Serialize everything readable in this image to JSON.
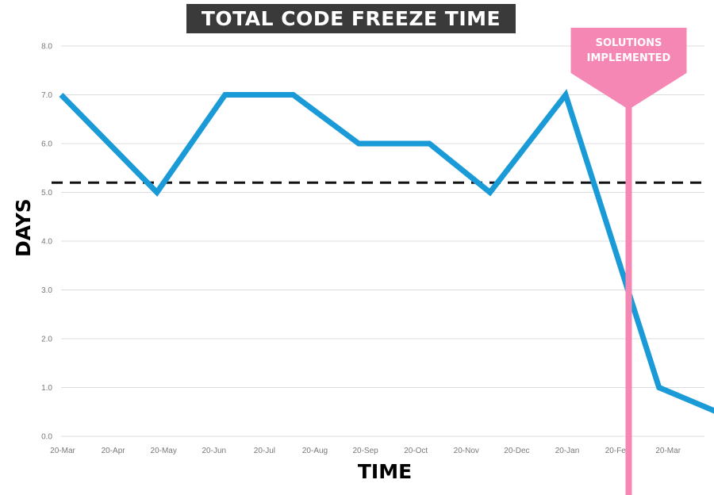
{
  "chart_data": {
    "type": "line",
    "title": "TOTAL CODE FREEZE TIME",
    "xlabel": "TIME",
    "ylabel": "DAYS",
    "ylim": [
      0,
      8
    ],
    "yticks": [
      "0.0",
      "1.0",
      "2.0",
      "3.0",
      "4.0",
      "5.0",
      "6.0",
      "7.0",
      "8.0"
    ],
    "xticks": [
      "20-Mar",
      "20-Apr",
      "20-May",
      "20-Jun",
      "20-Jul",
      "20-Aug",
      "20-Sep",
      "20-Oct",
      "20-Nov",
      "20-Dec",
      "20-Jan",
      "20-Feb",
      "20-Mar"
    ],
    "grid": true,
    "series": [
      {
        "values": [
          7.0,
          5.0,
          7.0,
          7.0,
          6.0,
          6.0,
          5.0,
          7.0,
          1.0,
          0.5
        ],
        "x_positions": [
          0,
          1.9,
          3.25,
          4.6,
          5.9,
          7.3,
          8.5,
          10.0,
          11.85,
          13.0
        ],
        "color": "#1a9ad6"
      }
    ],
    "average_line": {
      "value": 5.2,
      "style": "dashed",
      "color": "#111111"
    },
    "annotation": {
      "text_line1": "SOLUTIONS",
      "text_line2": "IMPLEMENTED",
      "x_position": 11.25,
      "color": "#f587b5"
    }
  }
}
